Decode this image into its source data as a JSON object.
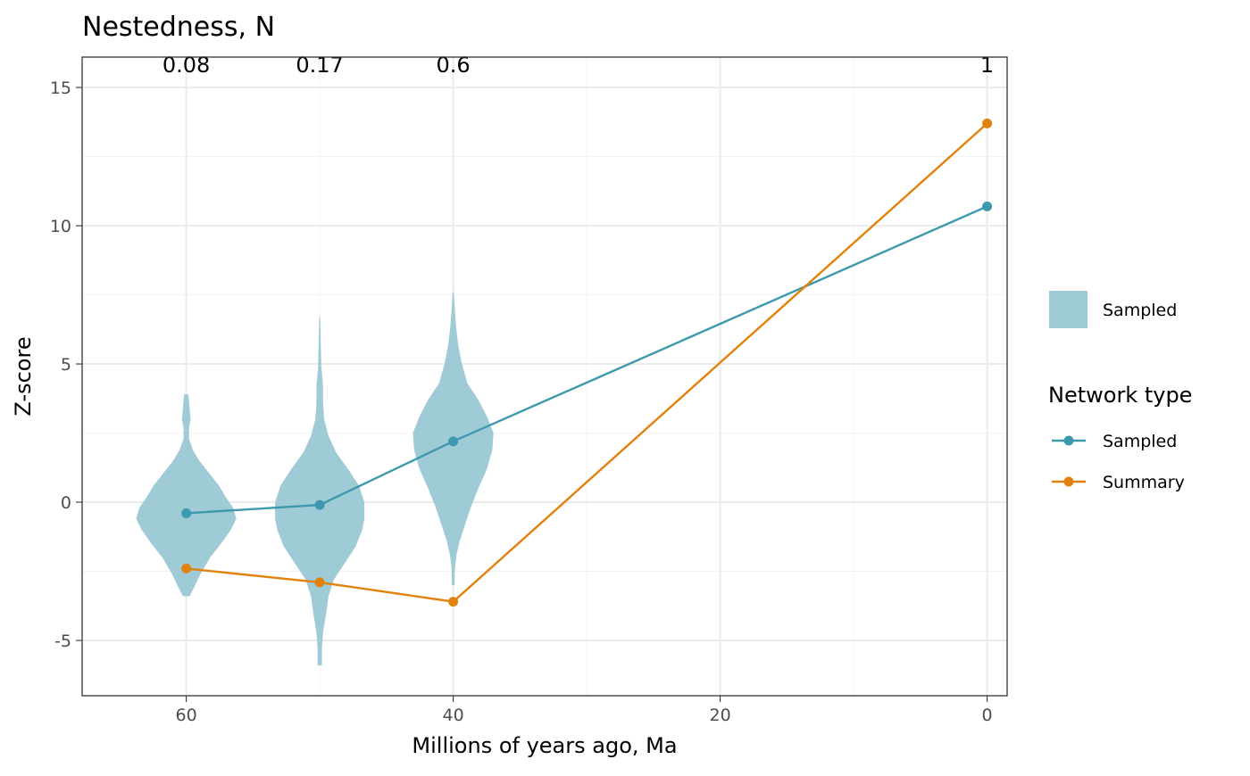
{
  "chart_data": {
    "type": "line",
    "title": "Nestedness, N",
    "xlabel": "Millions of years ago, Ma",
    "ylabel": "Z-score",
    "x_reversed": true,
    "xlim": [
      67.8,
      -1.5
    ],
    "ylim": [
      -7,
      16.1
    ],
    "x_ticks": [
      60,
      40,
      20,
      0
    ],
    "y_ticks": [
      -5,
      0,
      5,
      10,
      15
    ],
    "x_tick_labels": [
      "60",
      "40",
      "20",
      "0"
    ],
    "y_tick_labels": [
      "-5",
      "0",
      "5",
      "10",
      "15"
    ],
    "grid": true,
    "annotations": [
      {
        "x": 60,
        "y": 15.9,
        "text": "0.08"
      },
      {
        "x": 50,
        "y": 15.9,
        "text": "0.17"
      },
      {
        "x": 40,
        "y": 15.9,
        "text": "0.6"
      },
      {
        "x": 0,
        "y": 15.9,
        "text": "1"
      }
    ],
    "series": [
      {
        "name": "Sampled",
        "color": "#3d99ae",
        "x": [
          60,
          50,
          40,
          0
        ],
        "values": [
          -0.4,
          -0.1,
          2.2,
          10.7
        ]
      },
      {
        "name": "Summary",
        "color": "#e2810c",
        "x": [
          60,
          50,
          40,
          0
        ],
        "values": [
          -2.4,
          -2.9,
          -3.6,
          13.7
        ]
      }
    ],
    "violins": [
      {
        "x": 60,
        "color": "#9fcbd6",
        "profile": [
          [
            -3.4,
            0.3
          ],
          [
            -3.1,
            0.7
          ],
          [
            -2.6,
            1.3
          ],
          [
            -2.0,
            2.2
          ],
          [
            -1.5,
            3.2
          ],
          [
            -1.0,
            4.1
          ],
          [
            -0.6,
            4.6
          ],
          [
            -0.2,
            4.3
          ],
          [
            0.2,
            3.6
          ],
          [
            0.6,
            3.0
          ],
          [
            1.0,
            2.2
          ],
          [
            1.5,
            1.2
          ],
          [
            1.9,
            0.6
          ],
          [
            2.3,
            0.25
          ],
          [
            2.7,
            0.25
          ],
          [
            3.0,
            0.4
          ],
          [
            3.4,
            0.3
          ],
          [
            3.9,
            0.2
          ]
        ]
      },
      {
        "x": 50,
        "color": "#9fcbd6",
        "profile": [
          [
            -5.9,
            0.2
          ],
          [
            -5.3,
            0.2
          ],
          [
            -4.7,
            0.3
          ],
          [
            -4.0,
            0.6
          ],
          [
            -3.4,
            0.8
          ],
          [
            -2.8,
            1.3
          ],
          [
            -2.2,
            2.3
          ],
          [
            -1.6,
            3.3
          ],
          [
            -1.0,
            3.9
          ],
          [
            -0.6,
            4.1
          ],
          [
            0.0,
            4.1
          ],
          [
            0.6,
            3.6
          ],
          [
            1.2,
            2.6
          ],
          [
            1.8,
            1.5
          ],
          [
            2.4,
            0.8
          ],
          [
            3.0,
            0.4
          ],
          [
            3.6,
            0.3
          ],
          [
            4.2,
            0.3
          ],
          [
            4.9,
            0.15
          ],
          [
            5.7,
            0.1
          ],
          [
            6.7,
            0.05
          ]
        ]
      },
      {
        "x": 40,
        "color": "#9fcbd6",
        "profile": [
          [
            -3.0,
            0.12
          ],
          [
            -2.4,
            0.15
          ],
          [
            -1.9,
            0.3
          ],
          [
            -1.4,
            0.6
          ],
          [
            -0.8,
            1.1
          ],
          [
            -0.2,
            1.6
          ],
          [
            0.5,
            2.3
          ],
          [
            1.2,
            3.1
          ],
          [
            1.9,
            3.6
          ],
          [
            2.5,
            3.7
          ],
          [
            3.1,
            3.1
          ],
          [
            3.7,
            2.3
          ],
          [
            4.3,
            1.3
          ],
          [
            5.0,
            0.8
          ],
          [
            5.7,
            0.45
          ],
          [
            6.4,
            0.25
          ],
          [
            7.0,
            0.15
          ],
          [
            7.6,
            0.05
          ]
        ]
      }
    ],
    "legend": {
      "placement": "right",
      "fill_key_label": "Sampled",
      "fill_key_color": "#9fcbd6",
      "title": "Network type",
      "entries": [
        {
          "label": "Sampled",
          "color": "#3d99ae"
        },
        {
          "label": "Summary",
          "color": "#e2810c"
        }
      ]
    }
  }
}
